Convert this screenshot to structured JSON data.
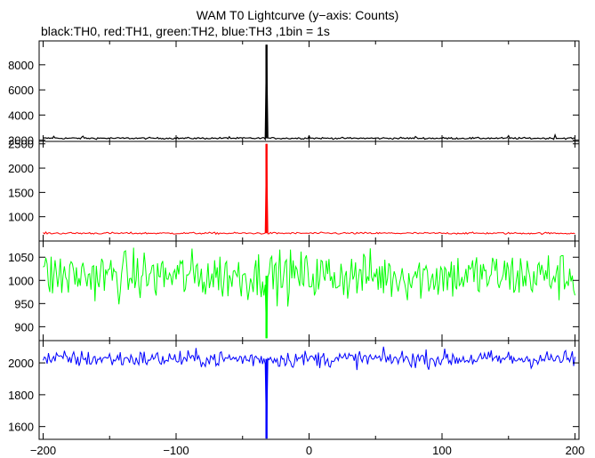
{
  "chart_data": {
    "type": "line",
    "title": "WAM T0 Lightcurve (y−axis: Counts)",
    "subtitle": "black:TH0, red:TH1, green:TH2, blue:TH3 ,1bin = 1s",
    "xlim": [
      -203,
      203
    ],
    "x_ticks": [
      -200,
      -100,
      0,
      100,
      200
    ],
    "x_tick_labels": [
      "−200",
      "−100",
      "0",
      "100",
      "200"
    ],
    "bin_seconds": 1,
    "panels": [
      {
        "name": "TH0",
        "color": "#000000",
        "ylim": [
          1900,
          9900
        ],
        "y_ticks": [
          2000,
          4000,
          6000,
          8000
        ],
        "y_tick_labels": [
          "2000",
          "4000",
          "6000",
          "8000"
        ],
        "baseline": 2150,
        "noise": 50,
        "peak_x": -32,
        "peak_y": 9600,
        "small_bumps": [
          [
            -192,
            2300
          ],
          [
            -170,
            2320
          ],
          [
            0,
            2330
          ],
          [
            150,
            2350
          ],
          [
            185,
            2420
          ],
          [
            -60,
            2270
          ],
          [
            80,
            2290
          ]
        ]
      },
      {
        "name": "TH1",
        "color": "#ff0000",
        "ylim": [
          500,
          2550
        ],
        "y_ticks": [
          1000,
          1500,
          2000,
          2500
        ],
        "y_tick_labels": [
          "1000",
          "1500",
          "2000",
          "2500"
        ],
        "baseline": 660,
        "noise": 14,
        "peak_x": -32,
        "peak_y": 2500
      },
      {
        "name": "TH2",
        "color": "#00ff00",
        "ylim": [
          870,
          1085
        ],
        "y_ticks": [
          900,
          950,
          1000,
          1050
        ],
        "y_tick_labels": [
          "900",
          "950",
          "1000",
          "1050"
        ],
        "baseline": 1010,
        "noise": 38,
        "peak_x": -32,
        "peak_y": 875
      },
      {
        "name": "TH3",
        "color": "#0000ff",
        "ylim": [
          1520,
          2140
        ],
        "y_ticks": [
          1600,
          1800,
          2000
        ],
        "y_tick_labels": [
          "1600",
          "1800",
          "2000"
        ],
        "baseline": 2025,
        "noise": 38,
        "peak_x": -32,
        "peak_y": 1525
      }
    ]
  }
}
